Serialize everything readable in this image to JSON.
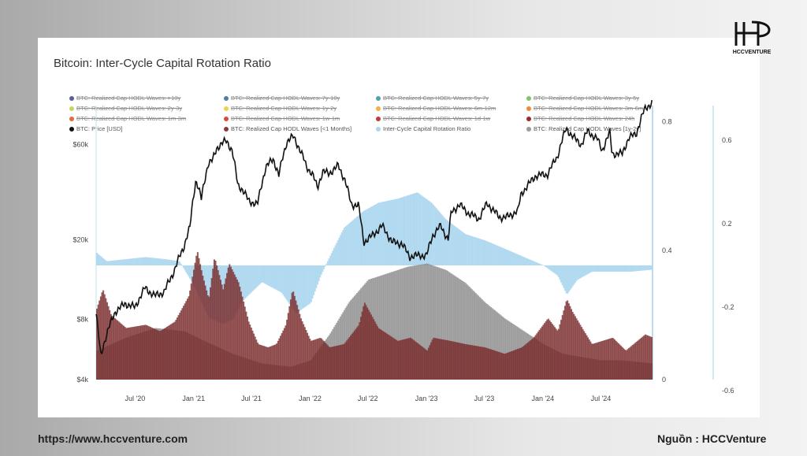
{
  "brand": {
    "logo_text": "HCCVENTURE"
  },
  "footer": {
    "url": "https://www.hccventure.com",
    "source": "Nguồn : HCCVenture"
  },
  "chart_data": {
    "type": "area",
    "title": "Bitcoin: Inter-Cycle Capital Rotation Ratio",
    "legend": [
      {
        "label": "BTC: Realized Cap HODL Waves: >10y",
        "color": "#5b5f97",
        "active": false
      },
      {
        "label": "BTC: Realized Cap HODL Waves: 7y-10y",
        "color": "#4e7fa6",
        "active": false
      },
      {
        "label": "BTC: Realized Cap HODL Waves: 5y-7y",
        "color": "#4aa6a0",
        "active": false
      },
      {
        "label": "BTC: Realized Cap HODL Waves: 3y-5y",
        "color": "#7fc46e",
        "active": false
      },
      {
        "label": "BTC: Realized Cap HODL Waves: 2y-3y",
        "color": "#c7d36a",
        "active": false
      },
      {
        "label": "BTC: Realized Cap HODL Waves: 1y-2y",
        "color": "#f0d24a",
        "active": false
      },
      {
        "label": "BTC: Realized Cap HODL Waves: 6m-12m",
        "color": "#f2b43f",
        "active": false
      },
      {
        "label": "BTC: Realized Cap HODL Waves: 3m-6m",
        "color": "#ee8a3c",
        "active": false
      },
      {
        "label": "BTC: Realized Cap HODL Waves: 1m-3m",
        "color": "#e8683a",
        "active": false
      },
      {
        "label": "BTC: Realized Cap HODL Waves: 1w-1m",
        "color": "#d94a3a",
        "active": false
      },
      {
        "label": "BTC: Realized Cap HODL Waves: 1d-1w",
        "color": "#c23a36",
        "active": false
      },
      {
        "label": "BTC: Realized Cap HODL Waves: 24h",
        "color": "#9e2a2a",
        "active": false
      },
      {
        "label": "BTC: Price [USD]",
        "color": "#111111",
        "active": true
      },
      {
        "label": "BTC: Realized Cap HODL Waves [<1 Months]",
        "color": "#8b3a3a",
        "active": true
      },
      {
        "label": "Inter-Cycle Capital Rotation Ratio",
        "color": "#a9d6f0",
        "active": true
      },
      {
        "label": "BTC: Realized Cap HODL Waves [1y-2y]",
        "color": "#9a9a9a",
        "active": true
      }
    ],
    "x_ticks": [
      "Jul '20",
      "Jan '21",
      "Jul '21",
      "Jan '22",
      "Jul '22",
      "Jan '23",
      "Jul '23",
      "Jan '24",
      "Jul '24"
    ],
    "x_range": [
      "2020-03-01",
      "2024-12-10"
    ],
    "y_price_ticks": [
      "$60k",
      "$20k",
      "$8k",
      "$4k"
    ],
    "y_price_scale": "log",
    "y_price_range": [
      4000,
      62000
    ],
    "y_hodl_ticks": [
      "0.8",
      "0.4",
      "0"
    ],
    "y_hodl_range": [
      0,
      0.85
    ],
    "y_ratio_ticks": [
      "0.6",
      "0.2",
      "-0.2",
      "-0.6"
    ],
    "y_ratio_range": [
      -0.6,
      0.6
    ],
    "series": [
      {
        "name": "BTC: Price [USD]",
        "x": [
          "2020-03-01",
          "2020-03-15",
          "2020-04-01",
          "2020-05-01",
          "2020-06-01",
          "2020-07-01",
          "2020-08-01",
          "2020-09-01",
          "2020-10-01",
          "2020-11-01",
          "2020-12-01",
          "2020-12-20",
          "2021-01-08",
          "2021-01-25",
          "2021-02-15",
          "2021-03-01",
          "2021-03-15",
          "2021-04-14",
          "2021-05-01",
          "2021-05-19",
          "2021-06-01",
          "2021-06-22",
          "2021-07-20",
          "2021-08-15",
          "2021-09-07",
          "2021-09-25",
          "2021-10-20",
          "2021-11-10",
          "2021-12-01",
          "2021-12-20",
          "2022-01-10",
          "2022-01-24",
          "2022-02-10",
          "2022-03-01",
          "2022-03-30",
          "2022-04-20",
          "2022-05-10",
          "2022-06-01",
          "2022-06-18",
          "2022-07-15",
          "2022-08-15",
          "2022-09-15",
          "2022-10-15",
          "2022-11-09",
          "2022-12-15",
          "2023-01-01",
          "2023-01-20",
          "2023-02-15",
          "2023-03-10",
          "2023-03-20",
          "2023-04-14",
          "2023-05-15",
          "2023-06-15",
          "2023-07-10",
          "2023-08-17",
          "2023-09-10",
          "2023-10-15",
          "2023-10-25",
          "2023-11-15",
          "2023-12-10",
          "2024-01-15",
          "2024-02-15",
          "2024-03-14",
          "2024-04-15",
          "2024-05-01",
          "2024-05-20",
          "2024-06-20",
          "2024-07-05",
          "2024-07-29",
          "2024-08-05",
          "2024-09-06",
          "2024-09-27",
          "2024-10-20",
          "2024-11-15",
          "2024-12-10"
        ],
        "values": [
          8500,
          5200,
          6600,
          8800,
          9600,
          9200,
          11500,
          10500,
          11000,
          14000,
          18500,
          23000,
          40000,
          32000,
          48000,
          50000,
          58000,
          63000,
          56000,
          38000,
          36000,
          31500,
          30000,
          46000,
          51000,
          42000,
          62000,
          66000,
          56000,
          47000,
          42000,
          36500,
          44000,
          43000,
          47000,
          40000,
          30000,
          30000,
          19500,
          21000,
          23500,
          19500,
          19200,
          16500,
          16800,
          16600,
          21000,
          23500,
          20000,
          27500,
          30000,
          27000,
          25500,
          30500,
          26000,
          26000,
          28000,
          34000,
          37500,
          42000,
          42500,
          52000,
          72000,
          63000,
          60000,
          70000,
          64000,
          56000,
          69000,
          54000,
          54000,
          65000,
          68000,
          90000,
          98000
        ]
      },
      {
        "name": "BTC: Realized Cap HODL Waves [<1 Months]",
        "x": [
          "2020-03-01",
          "2020-03-20",
          "2020-04-15",
          "2020-06-01",
          "2020-08-01",
          "2020-09-15",
          "2020-11-01",
          "2020-12-15",
          "2021-01-10",
          "2021-01-25",
          "2021-02-15",
          "2021-03-05",
          "2021-04-01",
          "2021-04-20",
          "2021-05-20",
          "2021-06-20",
          "2021-07-20",
          "2021-08-20",
          "2021-09-15",
          "2021-10-15",
          "2021-11-05",
          "2021-12-01",
          "2022-01-01",
          "2022-02-01",
          "2022-03-01",
          "2022-04-15",
          "2022-06-01",
          "2022-06-18",
          "2022-08-01",
          "2022-10-01",
          "2022-11-10",
          "2023-01-01",
          "2023-01-20",
          "2023-03-15",
          "2023-05-01",
          "2023-07-01",
          "2023-09-01",
          "2023-10-25",
          "2023-12-01",
          "2024-01-15",
          "2024-02-15",
          "2024-03-14",
          "2024-04-01",
          "2024-05-01",
          "2024-06-01",
          "2024-08-05",
          "2024-09-15",
          "2024-11-15",
          "2024-12-10"
        ],
        "values": [
          0.22,
          0.28,
          0.2,
          0.16,
          0.17,
          0.15,
          0.18,
          0.26,
          0.4,
          0.33,
          0.25,
          0.38,
          0.28,
          0.36,
          0.3,
          0.18,
          0.11,
          0.1,
          0.11,
          0.17,
          0.28,
          0.19,
          0.12,
          0.13,
          0.1,
          0.11,
          0.17,
          0.24,
          0.16,
          0.12,
          0.13,
          0.09,
          0.13,
          0.12,
          0.11,
          0.1,
          0.08,
          0.1,
          0.13,
          0.19,
          0.15,
          0.25,
          0.21,
          0.16,
          0.11,
          0.13,
          0.09,
          0.14,
          0.13
        ]
      },
      {
        "name": "BTC: Realized Cap HODL Waves [1y-2y]",
        "x": [
          "2020-03-01",
          "2020-06-01",
          "2020-09-01",
          "2020-12-01",
          "2021-02-01",
          "2021-05-01",
          "2021-08-01",
          "2021-11-01",
          "2022-01-01",
          "2022-03-01",
          "2022-05-01",
          "2022-07-01",
          "2022-09-01",
          "2022-11-01",
          "2023-01-01",
          "2023-03-01",
          "2023-05-01",
          "2023-07-01",
          "2023-09-01",
          "2023-11-01",
          "2024-01-01",
          "2024-03-01",
          "2024-05-01",
          "2024-07-01",
          "2024-09-01",
          "2024-12-10"
        ],
        "values": [
          0.09,
          0.13,
          0.16,
          0.15,
          0.12,
          0.08,
          0.05,
          0.04,
          0.06,
          0.14,
          0.24,
          0.31,
          0.33,
          0.35,
          0.36,
          0.34,
          0.3,
          0.24,
          0.19,
          0.15,
          0.11,
          0.08,
          0.07,
          0.06,
          0.06,
          0.05
        ]
      },
      {
        "name": "Inter-Cycle Capital Rotation Ratio",
        "x": [
          "2020-03-01",
          "2020-04-01",
          "2020-06-01",
          "2020-08-01",
          "2020-10-01",
          "2020-11-15",
          "2021-01-01",
          "2021-02-15",
          "2021-04-01",
          "2021-05-01",
          "2021-06-01",
          "2021-08-01",
          "2021-10-01",
          "2021-11-15",
          "2022-01-01",
          "2022-02-01",
          "2022-03-01",
          "2022-04-15",
          "2022-06-15",
          "2022-08-01",
          "2022-10-01",
          "2022-12-01",
          "2023-01-15",
          "2023-03-01",
          "2023-05-01",
          "2023-07-01",
          "2023-09-01",
          "2023-11-01",
          "2024-01-01",
          "2024-02-15",
          "2024-03-14",
          "2024-04-15",
          "2024-06-01",
          "2024-08-01",
          "2024-10-01",
          "2024-12-10"
        ],
        "values": [
          0.06,
          0.02,
          0.03,
          0.04,
          0.03,
          0.02,
          -0.1,
          -0.25,
          -0.28,
          -0.26,
          -0.17,
          -0.08,
          -0.13,
          -0.23,
          -0.18,
          -0.05,
          0.04,
          0.18,
          0.26,
          0.3,
          0.32,
          0.35,
          0.3,
          0.22,
          0.15,
          0.12,
          0.08,
          0.04,
          0.0,
          -0.05,
          -0.14,
          -0.07,
          -0.03,
          -0.03,
          -0.03,
          -0.02
        ]
      }
    ]
  }
}
